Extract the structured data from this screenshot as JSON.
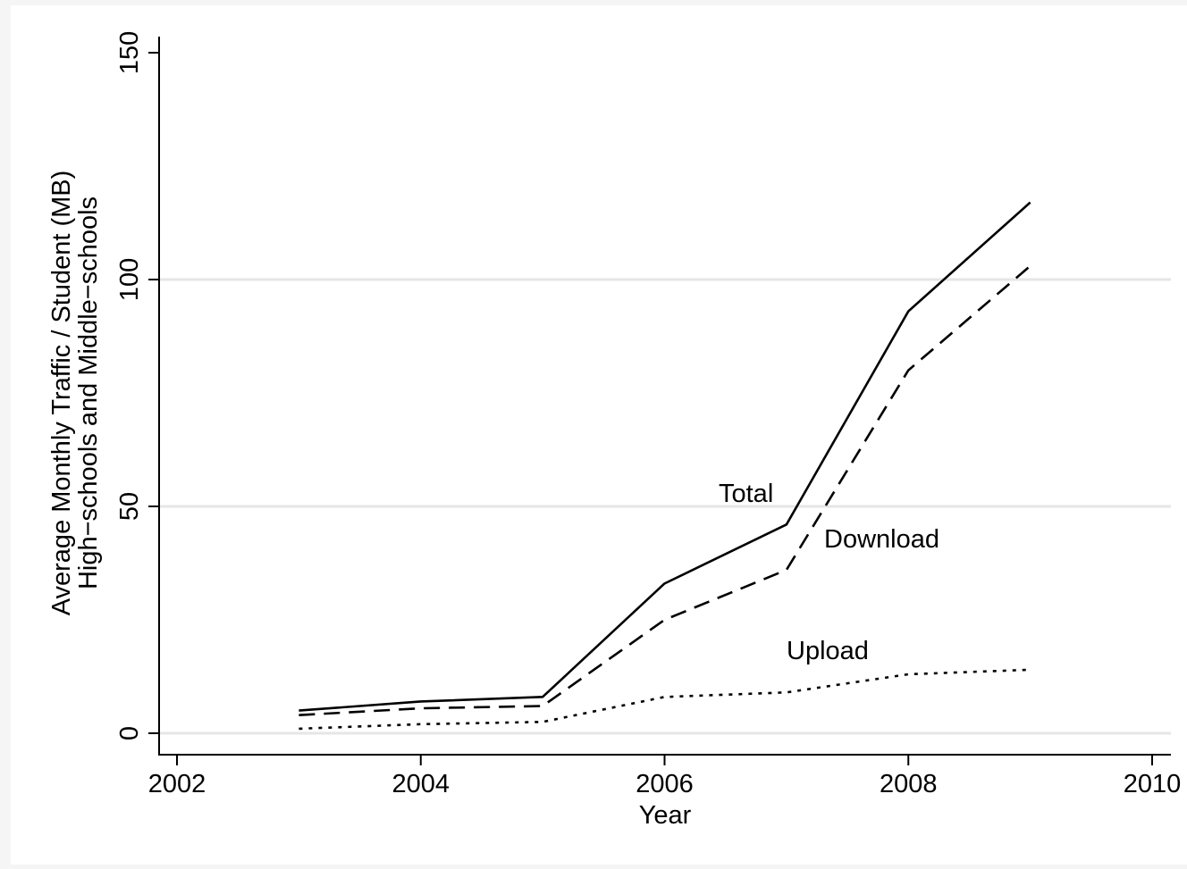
{
  "chart_data": {
    "type": "line",
    "title": "",
    "xlabel": "Year",
    "ylabel": [
      "Average Monthly Traffic / Student (MB)",
      "High−schools and Middle−schools"
    ],
    "xlim": [
      2002,
      2010
    ],
    "ylim": [
      0,
      150
    ],
    "xticks": [
      2002,
      2004,
      2006,
      2008,
      2010
    ],
    "yticks": [
      0,
      50,
      100,
      150
    ],
    "grid": "horizontal",
    "legend": "none (series labeled inline)",
    "x": [
      2003,
      2004,
      2005,
      2006,
      2007,
      2008,
      2009
    ],
    "series": [
      {
        "name": "Total",
        "values": [
          5,
          7,
          8,
          33,
          46,
          93,
          117
        ],
        "style": "solid"
      },
      {
        "name": "Download",
        "values": [
          4,
          5.5,
          6,
          25,
          36,
          80,
          103
        ],
        "style": "dashed"
      },
      {
        "name": "Upload",
        "values": [
          1,
          2,
          2.5,
          8,
          9,
          13,
          14
        ],
        "style": "dotted"
      }
    ],
    "colors": {
      "line": "#000000",
      "grid": "#e6e6e6",
      "background": "#ffffff"
    }
  }
}
